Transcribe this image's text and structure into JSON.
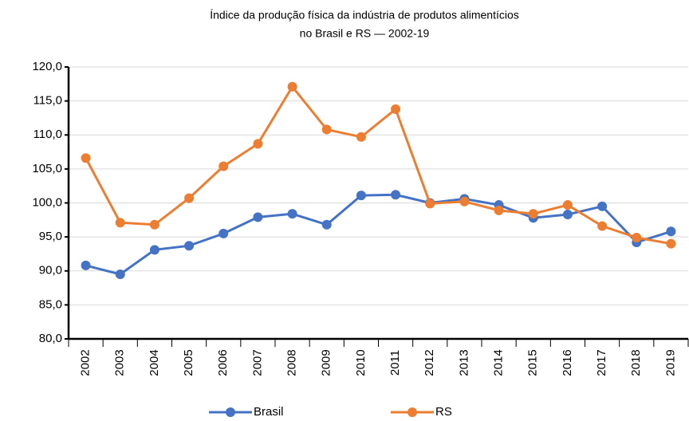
{
  "chart_data": {
    "type": "line",
    "title": [
      "Índice da produção física da indústria de produtos alimentícios",
      "no Brasil e RS — 2002-19"
    ],
    "categories": [
      "2002",
      "2003",
      "2004",
      "2005",
      "2006",
      "2007",
      "2008",
      "2009",
      "2010",
      "2011",
      "2012",
      "2013",
      "2014",
      "2015",
      "2016",
      "2017",
      "2018",
      "2019"
    ],
    "series": [
      {
        "name": "Brasil",
        "color": "#4472c4",
        "values": [
          90.8,
          89.5,
          93.1,
          93.7,
          95.5,
          97.9,
          98.4,
          96.8,
          101.1,
          101.2,
          100.0,
          100.6,
          99.7,
          97.8,
          98.3,
          99.5,
          94.2,
          95.8
        ]
      },
      {
        "name": "RS",
        "color": "#ed7d31",
        "values": [
          106.6,
          97.1,
          96.8,
          100.7,
          105.4,
          108.7,
          117.1,
          110.8,
          109.7,
          113.8,
          99.9,
          100.2,
          98.9,
          98.4,
          99.7,
          96.6,
          94.9,
          94.0
        ]
      }
    ],
    "ylim": [
      80,
      120
    ],
    "yticks": [
      {
        "value": 80,
        "label": "80,0"
      },
      {
        "value": 85,
        "label": "85,0"
      },
      {
        "value": 90,
        "label": "90,0"
      },
      {
        "value": 95,
        "label": "95,0"
      },
      {
        "value": 100,
        "label": "100,0"
      },
      {
        "value": 105,
        "label": "105,0"
      },
      {
        "value": 110,
        "label": "110,0"
      },
      {
        "value": 115,
        "label": "115,0"
      },
      {
        "value": 120,
        "label": "120,0"
      }
    ],
    "grid": true,
    "legend": "bottom"
  }
}
